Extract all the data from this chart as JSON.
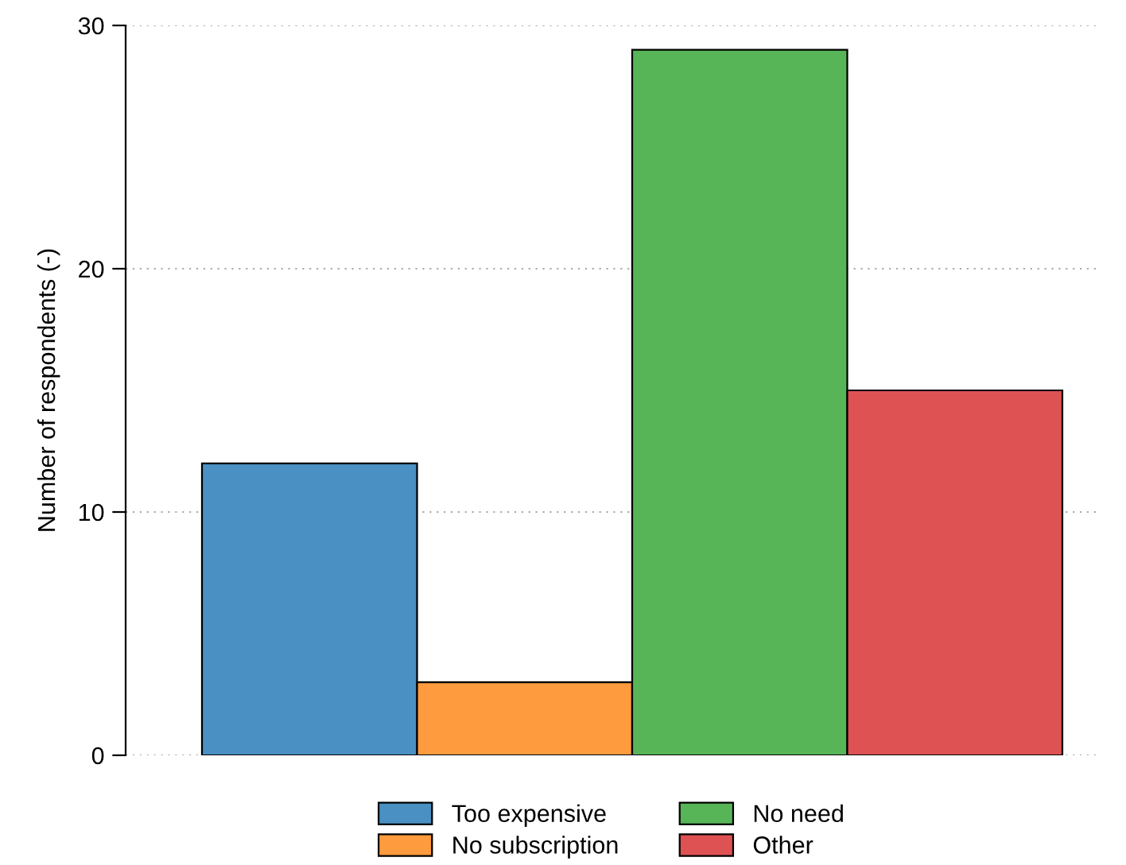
{
  "chart_data": {
    "type": "bar",
    "ylabel": "Number of respondents (-)",
    "categories": [
      null,
      null,
      null,
      null
    ],
    "series": [
      {
        "name": "Too expensive",
        "color": "#4a90c2",
        "values": [
          12,
          null,
          null,
          null
        ]
      },
      {
        "name": "No subscription",
        "color": "#fd9b3e",
        "values": [
          null,
          3,
          null,
          null
        ]
      },
      {
        "name": "No need",
        "color": "#57b557",
        "values": [
          null,
          null,
          29,
          null
        ]
      },
      {
        "name": "Other",
        "color": "#de5254",
        "values": [
          null,
          null,
          null,
          15
        ]
      }
    ],
    "ylim": [
      0,
      30
    ],
    "yticks": [
      0,
      10,
      20,
      30
    ],
    "grid": "y",
    "legend": "bottom",
    "tick_labels": "y"
  }
}
